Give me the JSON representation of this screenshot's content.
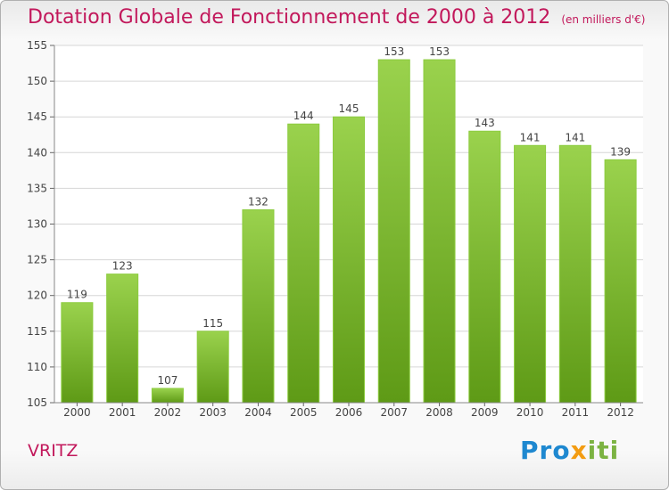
{
  "title": "Dotation Globale de Fonctionnement de 2000 à 2012",
  "unit": "(en milliers d'€)",
  "commune": "VRITZ",
  "logo": {
    "part1": "Pro",
    "part2": "x",
    "part3": "iti"
  },
  "colors": {
    "bar_top": "#9ad24d",
    "bar_bottom": "#5e9a16",
    "title": "#c2185b"
  },
  "chart_data": {
    "type": "bar",
    "categories": [
      "2000",
      "2001",
      "2002",
      "2003",
      "2004",
      "2005",
      "2006",
      "2007",
      "2008",
      "2009",
      "2010",
      "2011",
      "2012"
    ],
    "values": [
      119,
      123,
      107,
      115,
      132,
      144,
      145,
      153,
      153,
      143,
      141,
      141,
      139
    ],
    "ylim": [
      105,
      155
    ],
    "yticks": [
      105,
      110,
      115,
      120,
      125,
      130,
      135,
      140,
      145,
      150,
      155
    ],
    "grid": true
  }
}
